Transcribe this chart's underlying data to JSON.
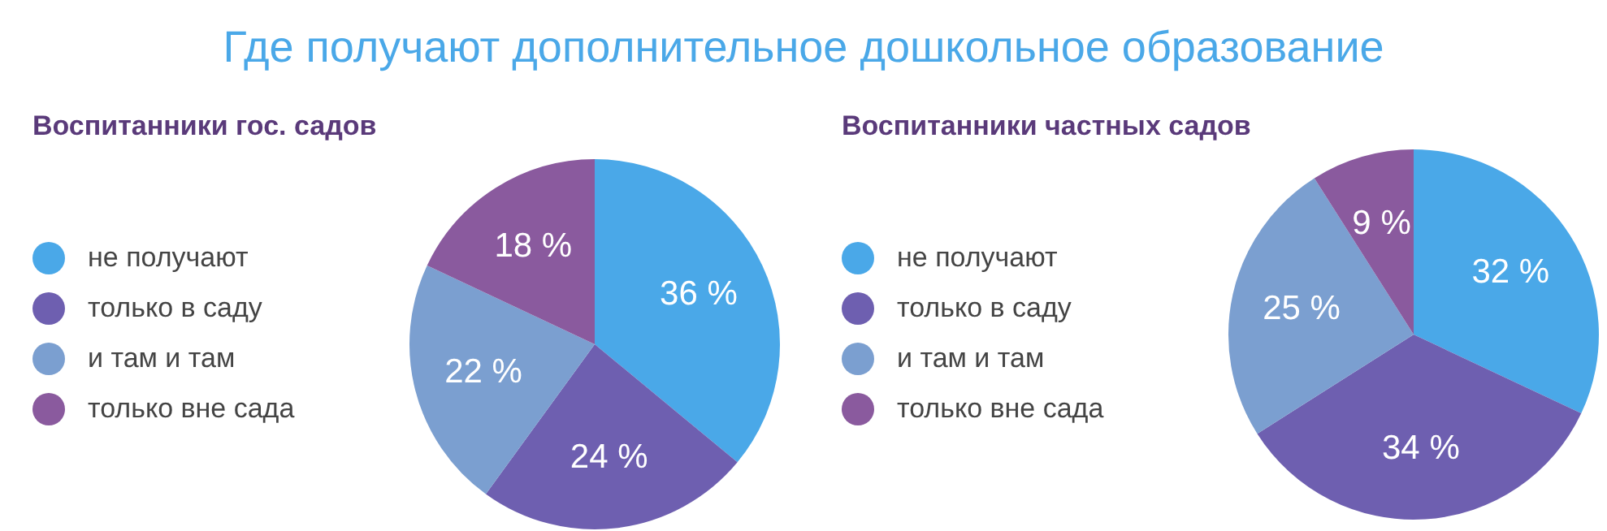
{
  "chart_data": [
    {
      "type": "pie",
      "title": "Где получают дополнительное дошкольное образование",
      "subtitle": "Воспитанники гос.  садов",
      "categories": [
        "не получают",
        "только в саду",
        "и там и там",
        "только вне сада"
      ],
      "values": [
        36,
        24,
        22,
        18
      ],
      "colors": [
        "#4aa8e8",
        "#6e5fb0",
        "#7b9fd0",
        "#8a5a9e"
      ],
      "value_labels": [
        "36 %",
        "24 %",
        "22 %",
        "18 %"
      ],
      "legend": "left"
    },
    {
      "type": "pie",
      "subtitle": "Воспитанники частных садов",
      "categories": [
        "не получают",
        "только в саду",
        "и там и там",
        "только вне сада"
      ],
      "values": [
        32,
        34,
        25,
        9
      ],
      "colors": [
        "#4aa8e8",
        "#6e5fb0",
        "#7b9fd0",
        "#8a5a9e"
      ],
      "value_labels": [
        "32 %",
        "34 %",
        "25 %",
        "9 %"
      ],
      "legend": "left"
    }
  ]
}
